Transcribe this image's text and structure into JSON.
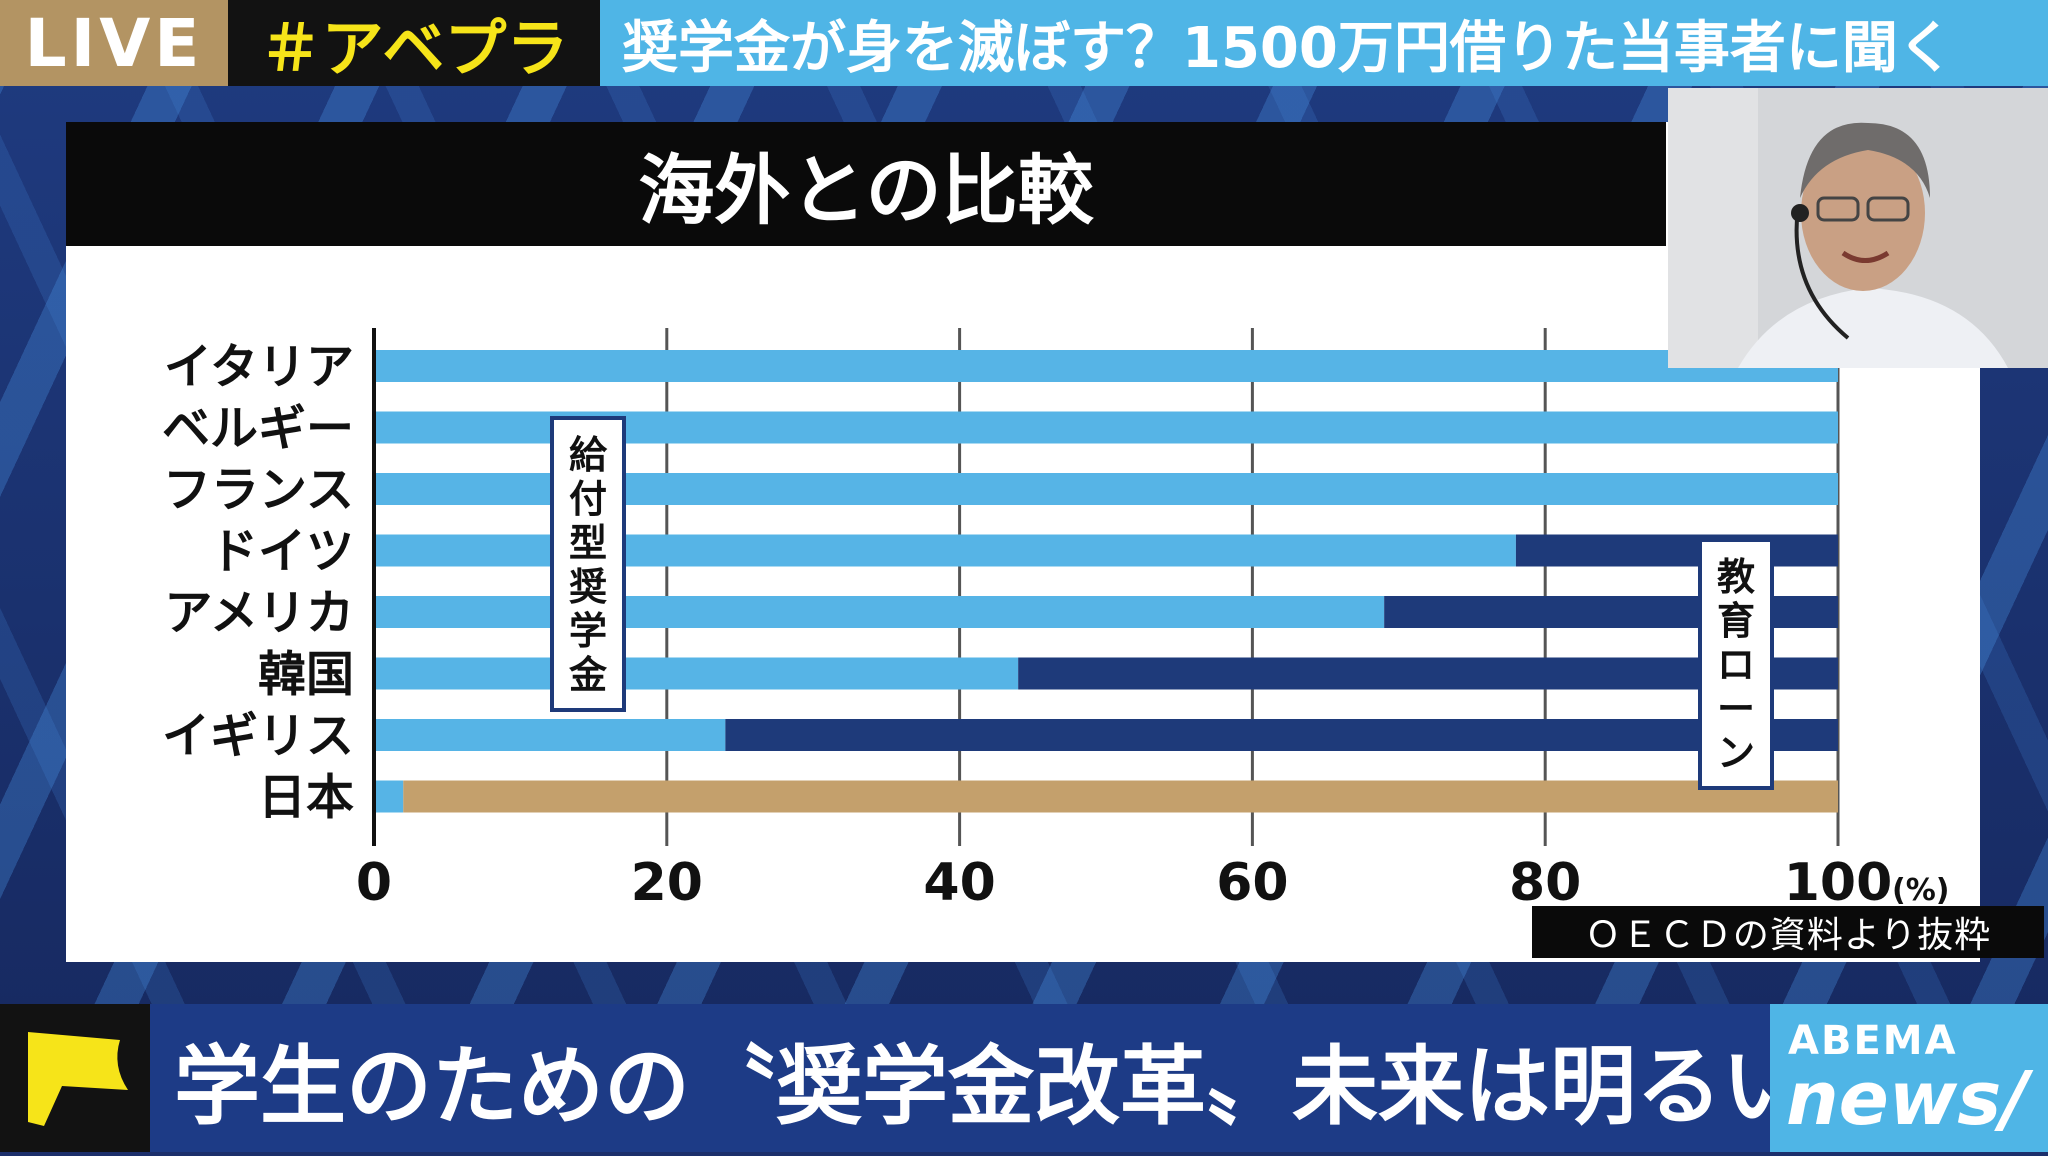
{
  "top_bar": {
    "live_label": "LIVE",
    "hashtag": "＃アベプラ",
    "headline": "奨学金が身を滅ぼす？1500万円借りた当事者に聞く"
  },
  "panel": {
    "title": "海外との比較",
    "source": "ＯＥＣＤの資料より抜粋"
  },
  "chart_data": {
    "type": "bar",
    "orientation": "horizontal",
    "stacked": true,
    "title": "海外との比較",
    "categories": [
      "イタリア",
      "ベルギー",
      "フランス",
      "ドイツ",
      "アメリカ",
      "韓国",
      "イギリス",
      "日本"
    ],
    "series": [
      {
        "name": "給付型奨学金",
        "color": "#56b4e6",
        "values": [
          100,
          100,
          100,
          78,
          69,
          44,
          24,
          2
        ]
      },
      {
        "name": "教育ローン",
        "color": "#1e3a7a",
        "values": [
          0,
          0,
          0,
          22,
          31,
          56,
          76,
          0
        ]
      },
      {
        "color": "#c4a06c",
        "values": [
          0,
          0,
          0,
          0,
          0,
          0,
          0,
          98
        ]
      }
    ],
    "xlim": [
      0,
      100
    ],
    "x_ticks": [
      "0",
      "20",
      "40",
      "60",
      "80",
      "100"
    ],
    "x_unit": "(%)",
    "grid": true,
    "labels": {
      "grant": "給付型奨学金",
      "loan": "教育ローン"
    }
  },
  "bottom_bar": {
    "caption": "学生のための〝奨学金改革〟未来は明るい？",
    "logo_top": "ABEMA",
    "logo_bottom": "news/"
  },
  "colors": {
    "live_bg": "#b39463",
    "hashtag_text": "#f6e419",
    "headline_bg": "#4fb5e6",
    "caption_bg": "#1d3b86",
    "flag": "#f6e419"
  }
}
